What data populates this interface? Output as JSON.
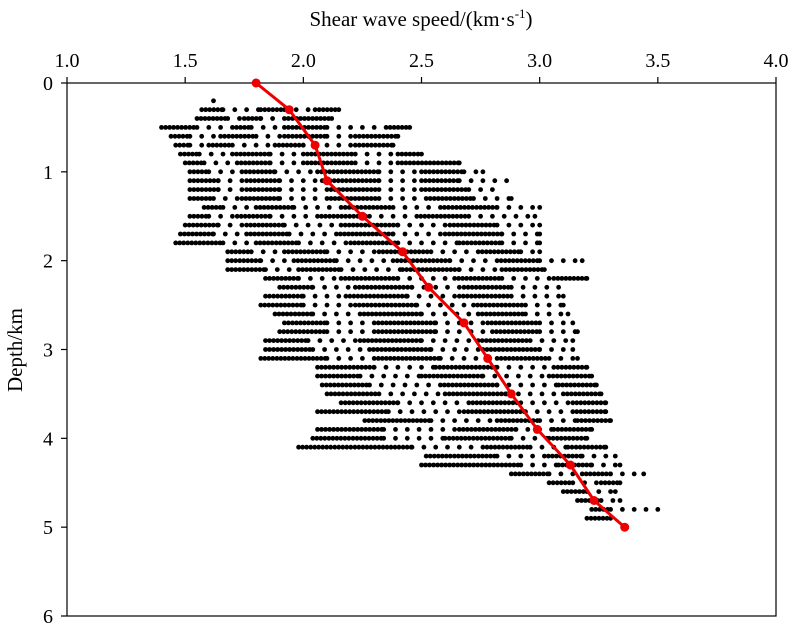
{
  "chart_data": {
    "type": "scatter",
    "title": "",
    "xlabel": "Shear wave speed/(km·s",
    "xlabel_sup": "-1",
    "xlabel_close": ")",
    "ylabel": "Depth/km",
    "xlim": [
      1.0,
      4.0
    ],
    "ylim": [
      0,
      6
    ],
    "y_inverted": true,
    "x_axis_position": "top",
    "x_ticks": [
      1.0,
      1.5,
      2.0,
      2.5,
      3.0,
      3.5,
      4.0
    ],
    "x_tick_labels": [
      "1.0",
      "1.5",
      "2.0",
      "2.5",
      "3.0",
      "3.5",
      "4.0"
    ],
    "y_ticks": [
      0,
      1,
      2,
      3,
      4,
      5,
      6
    ],
    "y_tick_labels": [
      "0",
      "1",
      "2",
      "3",
      "4",
      "5",
      "6"
    ],
    "grid": false,
    "series": [
      {
        "name": "scatter-measurements",
        "kind": "scatter",
        "color": "#000000",
        "rows": [
          {
            "depth": 0.2,
            "x": [
              1.62
            ]
          },
          {
            "depth": 0.3,
            "x": [
              1.57,
              1.66,
              1.82,
              1.92,
              2.05,
              2.15
            ]
          },
          {
            "depth": 0.4,
            "x": [
              1.55,
              1.68,
              1.75,
              1.82,
              1.92,
              2.12
            ]
          },
          {
            "depth": 0.5,
            "x": [
              1.4,
              1.55,
              1.7,
              1.78,
              1.92,
              2.1,
              2.35,
              2.45
            ]
          },
          {
            "depth": 0.6,
            "x": [
              1.44,
              1.52,
              1.65,
              1.8,
              1.92,
              2.1,
              2.22,
              2.4
            ]
          },
          {
            "depth": 0.7,
            "x": [
              1.46,
              1.52,
              1.6,
              1.7,
              1.88,
              2.0,
              2.22,
              2.38
            ]
          },
          {
            "depth": 0.8,
            "x": [
              1.48,
              1.56,
              1.7,
              1.86,
              2.0,
              2.22,
              2.4,
              2.5
            ]
          },
          {
            "depth": 0.9,
            "x": [
              1.5,
              1.58,
              1.72,
              1.86,
              2.0,
              2.22,
              2.4,
              2.66
            ]
          },
          {
            "depth": 1.0,
            "x": [
              1.52,
              1.6,
              1.74,
              1.88,
              2.06,
              2.32,
              2.5,
              2.68,
              2.76
            ]
          },
          {
            "depth": 1.1,
            "x": [
              1.52,
              1.64,
              1.76,
              1.9,
              2.08,
              2.32,
              2.5,
              2.66,
              2.86
            ]
          },
          {
            "depth": 1.2,
            "x": [
              1.52,
              1.64,
              1.76,
              1.9,
              2.1,
              2.32,
              2.5,
              2.7,
              2.8
            ]
          },
          {
            "depth": 1.3,
            "x": [
              1.52,
              1.62,
              1.74,
              1.9,
              2.1,
              2.32,
              2.52,
              2.72,
              2.88
            ]
          },
          {
            "depth": 1.4,
            "x": [
              1.58,
              1.66,
              1.8,
              1.96,
              2.16,
              2.38,
              2.58,
              2.82,
              3.0
            ]
          },
          {
            "depth": 1.5,
            "x": [
              1.52,
              1.6,
              1.72,
              1.86,
              2.06,
              2.28,
              2.48,
              2.7,
              2.98
            ]
          },
          {
            "depth": 1.6,
            "x": [
              1.5,
              1.64,
              1.76,
              1.92,
              2.16,
              2.4,
              2.62,
              2.82,
              3.0
            ]
          },
          {
            "depth": 1.7,
            "x": [
              1.48,
              1.62,
              1.76,
              1.94,
              2.14,
              2.38,
              2.6,
              2.84,
              3.0
            ]
          },
          {
            "depth": 1.8,
            "x": [
              1.46,
              1.66,
              1.8,
              1.98,
              2.2,
              2.4,
              2.66,
              2.84,
              3.0
            ]
          },
          {
            "depth": 1.9,
            "x": [
              1.68,
              1.78,
              1.92,
              2.1,
              2.32,
              2.54,
              2.74,
              2.92,
              3.0
            ]
          },
          {
            "depth": 2.0,
            "x": [
              1.68,
              1.82,
              1.96,
              2.14,
              2.38,
              2.62,
              2.82,
              3.0,
              3.18
            ]
          },
          {
            "depth": 2.1,
            "x": [
              1.68,
              1.84,
              1.98,
              2.16,
              2.42,
              2.66,
              2.84,
              3.02
            ]
          },
          {
            "depth": 2.2,
            "x": [
              1.84,
              1.98,
              2.16,
              2.4,
              2.64,
              2.84,
              3.06,
              3.2
            ]
          },
          {
            "depth": 2.3,
            "x": [
              1.9,
              2.04,
              2.22,
              2.46,
              2.68,
              2.88,
              3.08
            ]
          },
          {
            "depth": 2.4,
            "x": [
              1.84,
              2.0,
              2.18,
              2.44,
              2.66,
              2.88,
              3.1
            ]
          },
          {
            "depth": 2.5,
            "x": [
              1.82,
              2.0,
              2.22,
              2.48,
              2.72,
              2.94,
              3.1
            ]
          },
          {
            "depth": 2.6,
            "x": [
              1.88,
              2.04,
              2.24,
              2.5,
              2.74,
              2.94,
              3.12
            ]
          },
          {
            "depth": 2.7,
            "x": [
              1.92,
              2.1,
              2.3,
              2.56,
              2.78,
              3.0,
              3.14
            ]
          },
          {
            "depth": 2.8,
            "x": [
              1.9,
              2.1,
              2.3,
              2.56,
              2.8,
              3.0,
              3.16
            ]
          },
          {
            "depth": 2.9,
            "x": [
              1.84,
              2.02,
              2.24,
              2.5,
              2.74,
              2.96,
              3.14
            ]
          },
          {
            "depth": 3.0,
            "x": [
              1.84,
              2.04,
              2.28,
              2.54,
              2.76,
              3.0,
              3.14
            ]
          },
          {
            "depth": 3.1,
            "x": [
              1.82,
              2.1,
              2.3,
              2.58,
              2.82,
              3.04,
              3.16
            ]
          },
          {
            "depth": 3.2,
            "x": [
              2.06,
              2.3,
              2.56,
              2.82,
              3.06,
              3.2
            ]
          },
          {
            "depth": 3.3,
            "x": [
              2.06,
              2.24,
              2.5,
              2.76,
              3.04,
              3.22
            ]
          },
          {
            "depth": 3.4,
            "x": [
              2.08,
              2.28,
              2.58,
              2.82,
              3.08,
              3.24
            ]
          },
          {
            "depth": 3.5,
            "x": [
              2.1,
              2.32,
              2.6,
              2.86,
              3.1,
              3.26
            ]
          },
          {
            "depth": 3.6,
            "x": [
              2.16,
              2.4,
              2.7,
              2.92,
              3.14,
              3.28
            ]
          },
          {
            "depth": 3.7,
            "x": [
              2.06,
              2.36,
              2.68,
              2.94,
              3.14,
              3.28
            ]
          },
          {
            "depth": 3.8,
            "x": [
              2.26,
              2.54,
              2.82,
              3.0,
              3.16,
              3.3
            ]
          },
          {
            "depth": 3.9,
            "x": [
              2.06,
              2.34,
              2.66,
              2.9,
              3.06,
              3.22
            ]
          },
          {
            "depth": 4.0,
            "x": [
              2.04,
              2.34,
              2.6,
              2.88,
              3.04,
              3.2
            ]
          },
          {
            "depth": 4.1,
            "x": [
              1.98,
              2.46,
              2.76,
              2.96,
              3.12,
              3.28
            ]
          },
          {
            "depth": 4.2,
            "x": [
              2.52,
              2.82,
              3.02,
              3.18,
              3.32
            ]
          },
          {
            "depth": 4.3,
            "x": [
              2.5,
              2.92,
              3.08,
              3.22,
              3.34
            ]
          },
          {
            "depth": 4.4,
            "x": [
              2.88,
              3.04,
              3.18,
              3.3,
              3.44
            ]
          },
          {
            "depth": 4.5,
            "x": [
              3.04,
              3.14,
              3.26,
              3.34
            ]
          },
          {
            "depth": 4.6,
            "x": [
              3.1,
              3.2,
              3.32
            ]
          },
          {
            "depth": 4.7,
            "x": [
              3.16,
              3.26,
              3.34
            ]
          },
          {
            "depth": 4.8,
            "x": [
              3.22,
              3.3,
              3.5
            ]
          },
          {
            "depth": 4.9,
            "x": [
              3.2,
              3.3
            ]
          }
        ]
      },
      {
        "name": "mean-profile",
        "kind": "line",
        "color": "#ee0000",
        "points": [
          {
            "x": 1.8,
            "y": 0.0
          },
          {
            "x": 1.94,
            "y": 0.3
          },
          {
            "x": 2.05,
            "y": 0.7
          },
          {
            "x": 2.1,
            "y": 1.1
          },
          {
            "x": 2.25,
            "y": 1.5
          },
          {
            "x": 2.42,
            "y": 1.9
          },
          {
            "x": 2.53,
            "y": 2.3
          },
          {
            "x": 2.68,
            "y": 2.7
          },
          {
            "x": 2.78,
            "y": 3.1
          },
          {
            "x": 2.88,
            "y": 3.5
          },
          {
            "x": 2.99,
            "y": 3.9
          },
          {
            "x": 3.13,
            "y": 4.3
          },
          {
            "x": 3.23,
            "y": 4.7
          },
          {
            "x": 3.36,
            "y": 5.0
          }
        ]
      }
    ]
  }
}
